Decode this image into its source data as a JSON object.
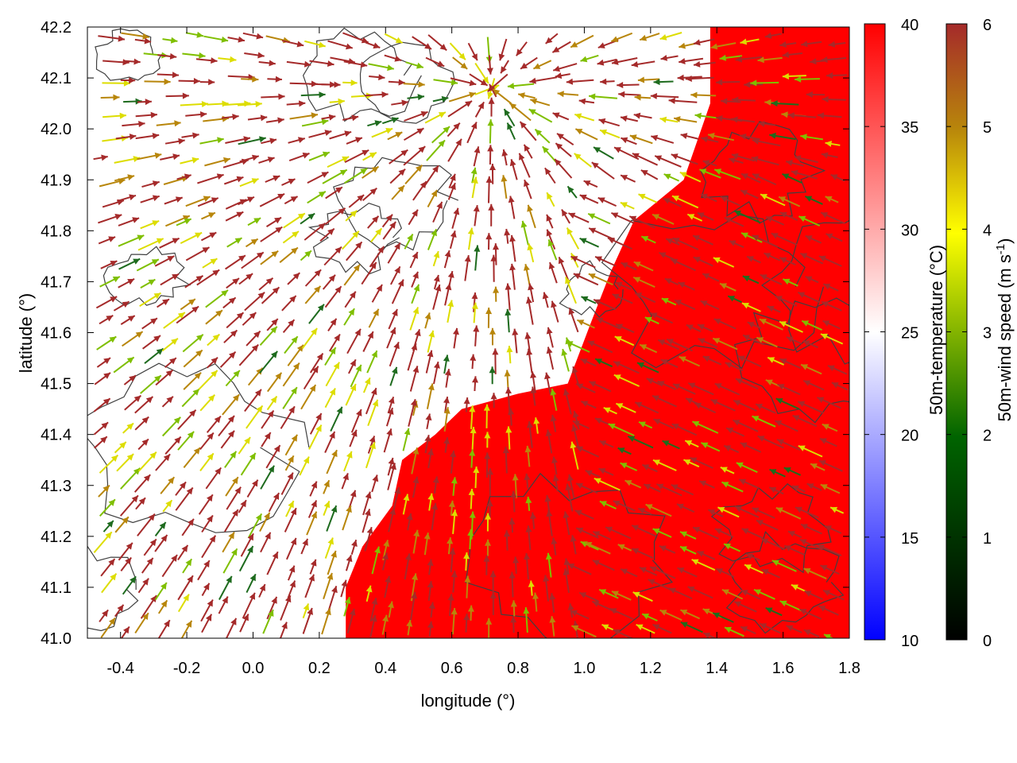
{
  "chart_data": {
    "type": "heatmap",
    "title": "",
    "xlabel": "longitude (°)",
    "ylabel": "latitude (°)",
    "xlim": [
      -0.5,
      1.8
    ],
    "ylim": [
      41.0,
      42.2
    ],
    "x_ticks": [
      "-0.4",
      "-0.2",
      "0.0",
      "0.2",
      "0.4",
      "0.6",
      "0.8",
      "1.0",
      "1.2",
      "1.4",
      "1.6",
      "1.8"
    ],
    "y_ticks": [
      "41.0",
      "41.1",
      "41.2",
      "41.3",
      "41.4",
      "41.5",
      "41.6",
      "41.7",
      "41.8",
      "41.9",
      "42.0",
      "42.1",
      "42.2"
    ],
    "layers": [
      {
        "kind": "filled-contour",
        "field": "50m-temperature"
      },
      {
        "kind": "contour-lines",
        "field": "terrain",
        "color": "#404040"
      },
      {
        "kind": "vectors",
        "field": "50m-wind"
      }
    ],
    "colorbars": [
      {
        "label": "50m-temperature (°C)",
        "range": [
          10,
          40
        ],
        "ticks": [
          "10",
          "15",
          "20",
          "25",
          "30",
          "35",
          "40"
        ],
        "colors": [
          "#0000ff",
          "#ffffff",
          "#ff0000"
        ]
      },
      {
        "label_main": "50m-wind speed (m s",
        "label_sup": "-1",
        "label_end": ")",
        "range": [
          0,
          6
        ],
        "ticks": [
          "0",
          "1",
          "2",
          "3",
          "4",
          "5",
          "6"
        ],
        "colors": [
          "#000000",
          "#006400",
          "#ffff00",
          "#b8860b",
          "#a52a2a"
        ]
      }
    ],
    "warm_region_boundary_lonlat": [
      [
        0.28,
        41.0
      ],
      [
        0.28,
        41.1
      ],
      [
        0.33,
        41.18
      ],
      [
        0.42,
        41.26
      ],
      [
        0.45,
        41.35
      ],
      [
        0.55,
        41.4
      ],
      [
        0.63,
        41.45
      ],
      [
        0.8,
        41.48
      ],
      [
        0.95,
        41.5
      ],
      [
        1.02,
        41.62
      ],
      [
        1.08,
        41.72
      ],
      [
        1.15,
        41.82
      ],
      [
        1.3,
        41.9
      ],
      [
        1.38,
        42.05
      ],
      [
        1.38,
        42.2
      ],
      [
        1.8,
        42.2
      ],
      [
        1.8,
        41.0
      ]
    ]
  }
}
